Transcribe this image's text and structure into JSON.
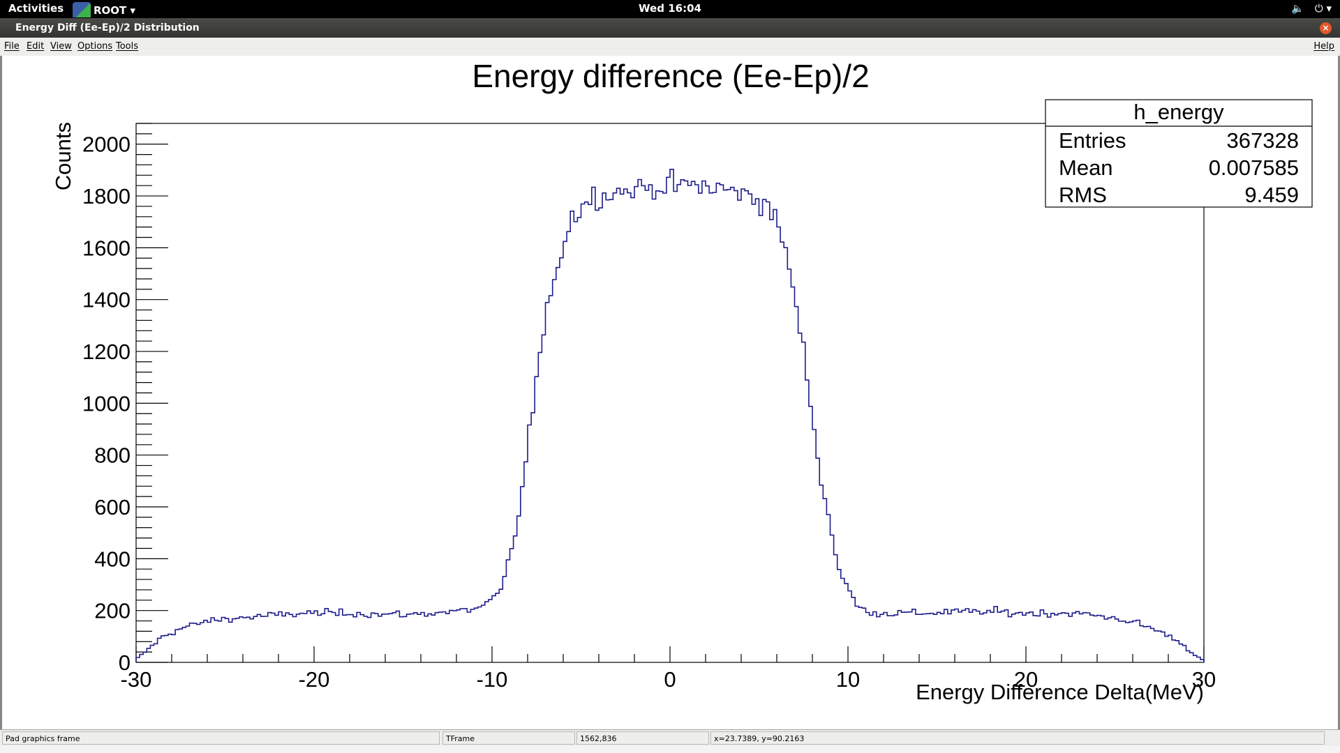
{
  "topbar": {
    "activities": "Activities",
    "app_name": "ROOT ▾",
    "clock": "Wed 16:04",
    "tray_volume": "🔈",
    "tray_power": "⏻ ▾"
  },
  "window": {
    "title": "Energy Diff (Ee-Ep)/2 Distribution",
    "close": "×"
  },
  "menubar": {
    "file": "File",
    "edit": "Edit",
    "view": "View",
    "options": "Options",
    "tools": "Tools",
    "help": "Help"
  },
  "stats_box": {
    "name": "h_energy",
    "entries_label": "Entries",
    "entries_value": "367328",
    "mean_label": "Mean",
    "mean_value": "0.007585",
    "rms_label": "RMS",
    "rms_value": "9.459"
  },
  "statusbar": {
    "object": "Pad graphics frame",
    "class": "TFrame",
    "pixel": "1562,836",
    "coords": "x=23.7389, y=90.2163"
  },
  "colors": {
    "histogram_line": "#1c1c8a",
    "topbar_bg": "#000000",
    "close_button": "#e4572e"
  },
  "chart_data": {
    "type": "histogram",
    "title": "Energy difference (Ee-Ep)/2",
    "xlabel": "Energy Difference Delta(MeV)",
    "ylabel": "Counts",
    "xlim": [
      -30,
      30
    ],
    "ylim": [
      0,
      2080
    ],
    "x_ticks": [
      "-30",
      "-20",
      "-10",
      "0",
      "10",
      "20",
      "30"
    ],
    "y_ticks": [
      "0",
      "200",
      "400",
      "600",
      "800",
      "1000",
      "1200",
      "1400",
      "1600",
      "1800",
      "2000"
    ],
    "bin_width": 1,
    "bin_centers": [
      -29.5,
      -28.5,
      -27.5,
      -26.5,
      -25.5,
      -24.5,
      -23.5,
      -22.5,
      -21.5,
      -20.5,
      -19.5,
      -18.5,
      -17.5,
      -16.5,
      -15.5,
      -14.5,
      -13.5,
      -12.5,
      -11.5,
      -10.5,
      -9.5,
      -8.5,
      -7.5,
      -6.5,
      -5.5,
      -4.5,
      -3.5,
      -2.5,
      -1.5,
      -0.5,
      0.5,
      1.5,
      2.5,
      3.5,
      4.5,
      5.5,
      6.5,
      7.5,
      8.5,
      9.5,
      10.5,
      11.5,
      12.5,
      13.5,
      14.5,
      15.5,
      16.5,
      17.5,
      18.5,
      19.5,
      20.5,
      21.5,
      22.5,
      23.5,
      24.5,
      25.5,
      26.5,
      27.5,
      28.5,
      29.5
    ],
    "counts": [
      40,
      100,
      130,
      150,
      165,
      170,
      175,
      180,
      185,
      190,
      190,
      190,
      190,
      185,
      185,
      185,
      190,
      195,
      200,
      215,
      270,
      560,
      1100,
      1500,
      1720,
      1790,
      1810,
      1820,
      1830,
      1840,
      1840,
      1840,
      1830,
      1820,
      1800,
      1770,
      1600,
      1200,
      700,
      360,
      215,
      190,
      190,
      190,
      190,
      195,
      195,
      195,
      195,
      190,
      190,
      190,
      190,
      185,
      175,
      165,
      145,
      120,
      85,
      30
    ],
    "stats": {
      "entries": 367328,
      "mean": 0.007585,
      "rms": 9.459
    }
  }
}
